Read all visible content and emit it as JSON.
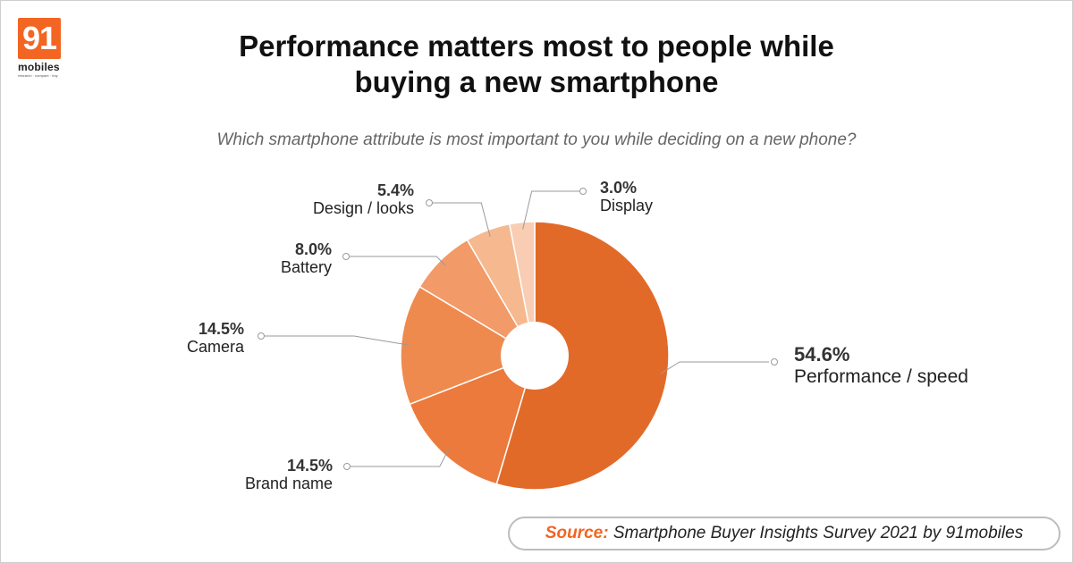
{
  "logo": {
    "number": "91",
    "word": "mobiles",
    "tagline": "research · compare · buy"
  },
  "header": {
    "title_line1": "Performance matters most to people while",
    "title_line2": "buying a new smartphone",
    "subtitle": "Which smartphone attribute is most important to you while deciding on a new phone?"
  },
  "source": {
    "label": "Source:",
    "text": "Smartphone Buyer Insights Survey 2021 by 91mobiles"
  },
  "chart_data": {
    "type": "pie",
    "title": "Performance matters most to people while buying a new smartphone",
    "categories": [
      "Performance / speed",
      "Brand name",
      "Camera",
      "Battery",
      "Design / looks",
      "Display"
    ],
    "values": [
      54.6,
      14.5,
      14.5,
      8.0,
      5.4,
      3.0
    ],
    "value_labels": [
      "54.6%",
      "14.5%",
      "14.5%",
      "8.0%",
      "5.4%",
      "3.0%"
    ],
    "colors": [
      "#e26a29",
      "#ec7a3c",
      "#ef8a4f",
      "#f29a68",
      "#f6b88f",
      "#f8cdb3"
    ],
    "donut_hole": true
  }
}
